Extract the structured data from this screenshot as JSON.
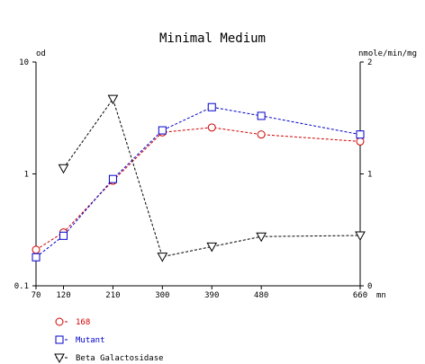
{
  "chart_data": {
    "type": "line",
    "title": "Minimal Medium",
    "x": [
      70,
      120,
      210,
      300,
      390,
      480,
      660
    ],
    "xlim": [
      70,
      660
    ],
    "x_tick_labels": [
      "70",
      "120",
      "210",
      "300",
      "390",
      "480",
      "660"
    ],
    "xunit": "mn",
    "left_axis": {
      "label": "od",
      "scale": "log",
      "ylim": [
        0.1,
        10
      ],
      "tick_labels": [
        "10",
        "1",
        "0.1"
      ]
    },
    "right_axis": {
      "label": "nmole/min/mg",
      "scale": "linear",
      "ylim": [
        0,
        2
      ],
      "tick_labels": [
        "2",
        "1",
        "0"
      ]
    },
    "grid": false,
    "legend_position": "bottom-left",
    "series": [
      {
        "name": "168",
        "axis": "left",
        "marker": "circle",
        "color": "#d00000",
        "x": [
          70,
          120,
          210,
          300,
          390,
          480,
          660
        ],
        "values": [
          0.21,
          0.3,
          0.87,
          2.35,
          2.6,
          2.25,
          1.95
        ]
      },
      {
        "name": "Mutant",
        "axis": "left",
        "marker": "square",
        "color": "#0000cc",
        "x": [
          70,
          120,
          210,
          300,
          390,
          480,
          660
        ],
        "values": [
          0.18,
          0.28,
          0.9,
          2.45,
          3.95,
          3.3,
          2.25
        ]
      },
      {
        "name": "Beta Galactosidase",
        "axis": "right",
        "marker": "triangle-down",
        "color": "#000000",
        "x": [
          120,
          210,
          300,
          390,
          480,
          660
        ],
        "values": [
          1.05,
          1.67,
          0.26,
          0.35,
          0.44,
          0.45
        ]
      }
    ]
  }
}
